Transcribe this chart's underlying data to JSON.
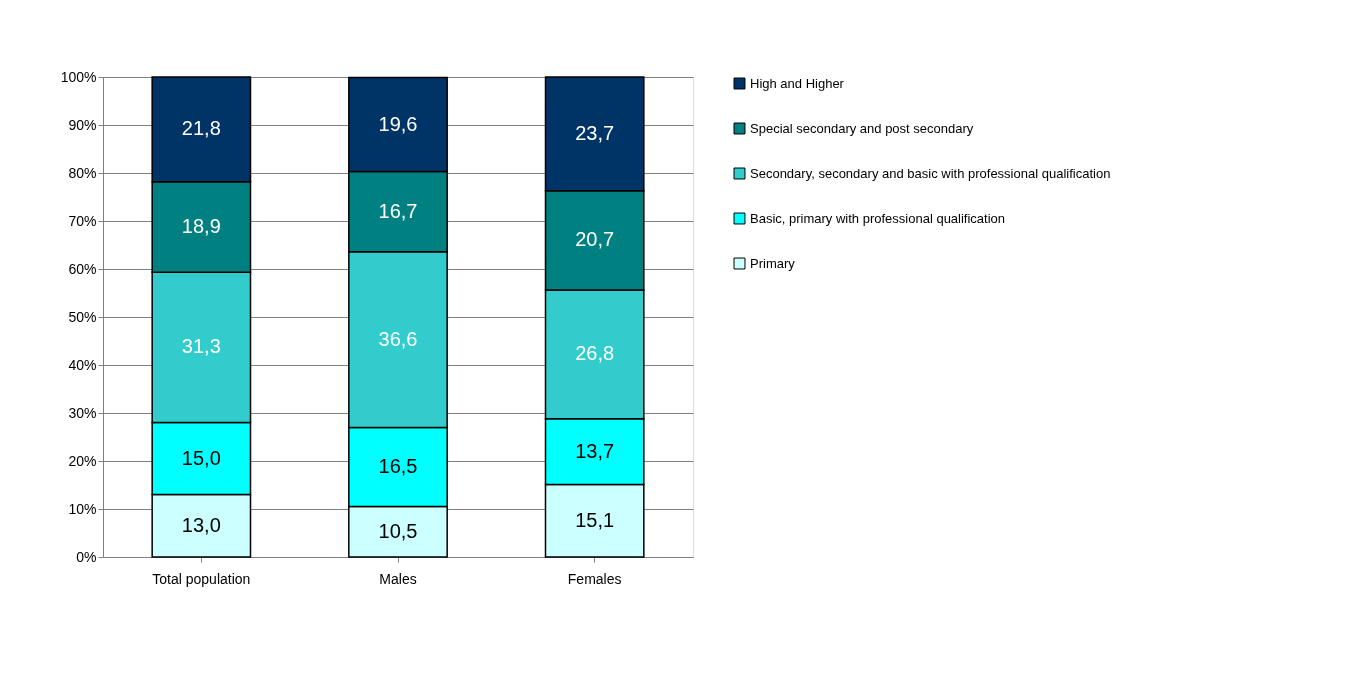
{
  "chart_data": {
    "type": "bar",
    "stacked": true,
    "categories": [
      "Total population",
      "Males",
      "Females"
    ],
    "series": [
      {
        "name": "Primary",
        "color": "#ccffff",
        "values": [
          13.0,
          10.5,
          15.1
        ],
        "value_labels": [
          "13,0",
          "10,5",
          "15,1"
        ]
      },
      {
        "name": "Basic, primary with professional qualification",
        "color": "#00ffff",
        "values": [
          15.0,
          16.5,
          13.7
        ],
        "value_labels": [
          "15,0",
          "16,5",
          "13,7"
        ]
      },
      {
        "name": "Secondary, secondary and basic with professional qualification",
        "color": "#33cccc",
        "values": [
          31.3,
          36.6,
          26.8
        ],
        "value_labels": [
          "31,3",
          "36,6",
          "26,8"
        ]
      },
      {
        "name": "Special secondary and post secondary",
        "color": "#008080",
        "values": [
          18.9,
          16.7,
          20.7
        ],
        "value_labels": [
          "18,9",
          "16,7",
          "20,7"
        ]
      },
      {
        "name": "High and Higher",
        "color": "#003366",
        "values": [
          21.8,
          19.6,
          23.7
        ],
        "value_labels": [
          "21,8",
          "19,6",
          "23,7"
        ]
      }
    ],
    "ylim": [
      0,
      100
    ],
    "yticks": [
      {
        "value": 0,
        "label": "0%"
      },
      {
        "value": 10,
        "label": "10%"
      },
      {
        "value": 20,
        "label": "20%"
      },
      {
        "value": 30,
        "label": "30%"
      },
      {
        "value": 40,
        "label": "40%"
      },
      {
        "value": 50,
        "label": "50%"
      },
      {
        "value": 60,
        "label": "60%"
      },
      {
        "value": 70,
        "label": "70%"
      },
      {
        "value": 80,
        "label": "80%"
      },
      {
        "value": 90,
        "label": "90%"
      },
      {
        "value": 100,
        "label": "100%"
      }
    ],
    "grid": "y",
    "legend": "right"
  }
}
